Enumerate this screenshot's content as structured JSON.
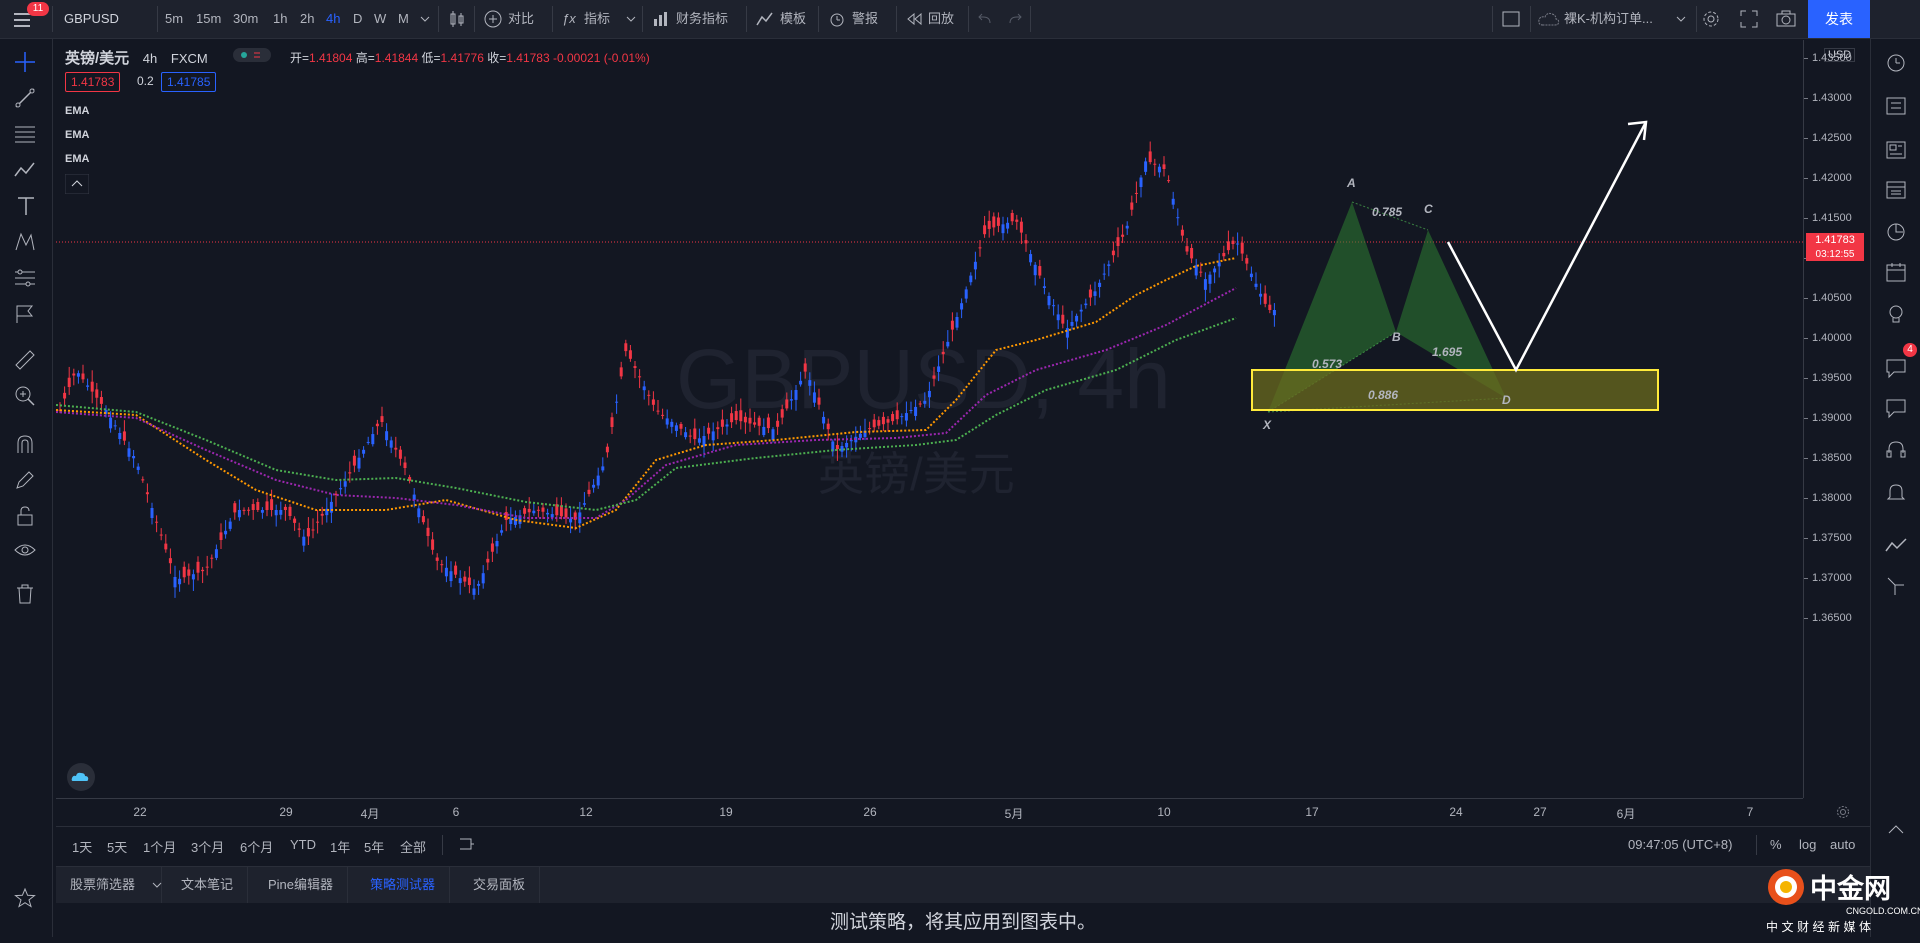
{
  "toolbar": {
    "menu_badge": "11",
    "symbol": "GBPUSD",
    "intervals": [
      "5m",
      "15m",
      "30m",
      "1h",
      "2h",
      "4h",
      "D",
      "W",
      "M"
    ],
    "active_interval": "4h",
    "compare": "对比",
    "indicators": "指标",
    "financials": "财务指标",
    "templates": "模板",
    "alert": "警报",
    "replay": "回放",
    "layout_name": "裸K-机构订单...",
    "publish": "发表"
  },
  "legend": {
    "title": "英镑/美元",
    "interval": "4h",
    "source": "FXCM",
    "open_label": "开=",
    "open": "1.41804",
    "high_label": "高=",
    "high": "1.41844",
    "low_label": "低=",
    "low": "1.41776",
    "close_label": "收=",
    "close": "1.41783",
    "change": "-0.00021 (-0.01%)",
    "bid": "1.41783",
    "spread": "0.2",
    "ask": "1.41785",
    "ema_labels": [
      "EMA",
      "EMA",
      "EMA"
    ]
  },
  "watermark": {
    "symbol": "GBPUSD, 4h",
    "name": "英镑/美元"
  },
  "pattern": {
    "points": [
      "X",
      "A",
      "B",
      "C",
      "D"
    ],
    "ratios": [
      "0.573",
      "0.785",
      "0.886",
      "1.695"
    ]
  },
  "price_axis": {
    "currency": "USD",
    "ticks": [
      "1.43500",
      "1.43000",
      "1.42500",
      "1.42000",
      "1.41500",
      "1.41000",
      "1.40500",
      "1.40000",
      "1.39500",
      "1.39000",
      "1.38500",
      "1.38000",
      "1.37500",
      "1.37000",
      "1.36500"
    ],
    "current_price": "1.41783",
    "countdown": "03:12:55"
  },
  "time_axis": {
    "ticks": [
      "22",
      "29",
      "4月",
      "6",
      "12",
      "19",
      "26",
      "5月",
      "10",
      "17",
      "24",
      "27",
      "6月",
      "7"
    ]
  },
  "range_bar": {
    "ranges": [
      "1天",
      "5天",
      "1个月",
      "3个月",
      "6个月",
      "YTD",
      "1年",
      "5年",
      "全部"
    ],
    "clock": "09:47:05 (UTC+8)",
    "percent": "%",
    "log": "log",
    "auto": "auto"
  },
  "tabs": [
    "股票筛选器",
    "文本笔记",
    "Pine编辑器",
    "策略测试器",
    "交易面板"
  ],
  "active_tab": "策略测试器",
  "bottom_message": "测试策略，将其应用到图表中。",
  "right_badge": "4",
  "logo": {
    "name": "中金网",
    "domain": "CNGOLD.COM.CN",
    "slogan": "中文财经新媒体"
  },
  "colors": {
    "up": "#2962ff",
    "down": "#f23645",
    "ema_fast": "#ff9800",
    "ema_mid": "#9c27b0",
    "ema_slow": "#4caf50",
    "pattern": "#2e7d32",
    "zone": "#ffeb3b"
  }
}
